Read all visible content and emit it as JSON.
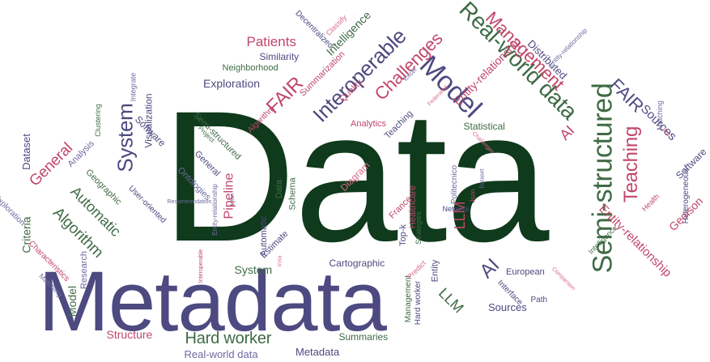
{
  "colors": {
    "dark_green": "#0f3a1c",
    "green": "#3f6b45",
    "navy": "#4c4a80",
    "purple": "#6e6aa0",
    "crimson": "#c1466a",
    "pink": "#d9698c",
    "background": "#ffffff"
  },
  "words": [
    {
      "text": "Data",
      "color": "dark_green",
      "weight": 1,
      "angle": 0
    },
    {
      "text": "Metadata",
      "color": "navy",
      "weight": 0.55,
      "angle": 0
    },
    {
      "text": "Semi-structured",
      "color": "green",
      "weight": 0.3,
      "angle": -90
    },
    {
      "text": "Real-world data",
      "color": "green",
      "weight": 0.2,
      "angle": 45
    },
    {
      "text": "Model",
      "color": "navy",
      "weight": 0.24,
      "angle": 45
    },
    {
      "text": "Interoperable",
      "color": "navy",
      "weight": 0.2,
      "angle": -45
    },
    {
      "text": "Management",
      "color": "crimson",
      "weight": 0.16,
      "angle": 45
    },
    {
      "text": "Challenges",
      "color": "crimson",
      "weight": 0.15,
      "angle": -45
    },
    {
      "text": "Teaching",
      "color": "crimson",
      "weight": 0.16,
      "angle": -90
    },
    {
      "text": "System",
      "color": "navy",
      "weight": 0.16,
      "angle": -90
    },
    {
      "text": "General",
      "color": "crimson",
      "weight": 0.13,
      "angle": -45
    },
    {
      "text": "Algorithm",
      "color": "green",
      "weight": 0.12,
      "angle": 45
    },
    {
      "text": "Automatic",
      "color": "green",
      "weight": 0.12,
      "angle": 45
    },
    {
      "text": "Hard worker",
      "color": "green",
      "weight": 0.11,
      "angle": 0
    },
    {
      "text": "FAIR",
      "color": "crimson",
      "weight": 0.12,
      "angle": -45
    },
    {
      "text": "FAIR",
      "color": "navy",
      "weight": 0.1,
      "angle": 45
    },
    {
      "text": "AI",
      "color": "crimson",
      "weight": 0.1,
      "angle": -45
    },
    {
      "text": "AI",
      "color": "navy",
      "weight": 0.12,
      "angle": -45
    },
    {
      "text": "LLM",
      "color": "crimson",
      "weight": 0.1,
      "angle": -90
    },
    {
      "text": "LLM",
      "color": "green",
      "weight": 0.1,
      "angle": 45
    },
    {
      "text": "Patients",
      "color": "crimson",
      "weight": 0.08,
      "angle": 0
    },
    {
      "text": "Exploration",
      "color": "navy",
      "weight": 0.07,
      "angle": 0
    },
    {
      "text": "Intelligence",
      "color": "green",
      "weight": 0.07,
      "angle": -45
    },
    {
      "text": "Entity-relationship",
      "color": "crimson",
      "weight": 0.08,
      "angle": -45
    },
    {
      "text": "Entity-relationship",
      "color": "crimson",
      "weight": 0.07,
      "angle": 45
    },
    {
      "text": "Sources",
      "color": "navy",
      "weight": 0.07,
      "angle": 45
    },
    {
      "text": "Sources",
      "color": "navy",
      "weight": 0.06,
      "angle": 0
    },
    {
      "text": "Distributed",
      "color": "navy",
      "weight": 0.06,
      "angle": 45
    },
    {
      "text": "Software",
      "color": "navy",
      "weight": 0.06,
      "angle": 45
    },
    {
      "text": "Software",
      "color": "navy",
      "weight": 0.05,
      "angle": -45
    },
    {
      "text": "Geoison",
      "color": "crimson",
      "weight": 0.06,
      "angle": -45
    },
    {
      "text": "Criteria",
      "color": "green",
      "weight": 0.07,
      "angle": -90
    },
    {
      "text": "Dataset",
      "color": "navy",
      "weight": 0.05,
      "angle": -90
    },
    {
      "text": "Structure",
      "color": "crimson",
      "weight": 0.06,
      "angle": 0
    },
    {
      "text": "Real-world data",
      "color": "purple",
      "weight": 0.06,
      "angle": 0
    },
    {
      "text": "Metadata",
      "color": "navy",
      "weight": 0.06,
      "angle": 0
    },
    {
      "text": "Summaries",
      "color": "green",
      "weight": 0.05,
      "angle": 0
    },
    {
      "text": "Cartographic",
      "color": "navy",
      "weight": 0.05,
      "angle": 0
    },
    {
      "text": "System",
      "color": "green",
      "weight": 0.06,
      "angle": 0
    },
    {
      "text": "Model",
      "color": "green",
      "weight": 0.06,
      "angle": -90
    },
    {
      "text": "Visualization",
      "color": "navy",
      "weight": 0.05,
      "angle": -90
    },
    {
      "text": "Similarity",
      "color": "navy",
      "weight": 0.05,
      "angle": 0
    },
    {
      "text": "Neighborhood",
      "color": "green",
      "weight": 0.04,
      "angle": 0
    },
    {
      "text": "Summarization",
      "color": "crimson",
      "weight": 0.04,
      "angle": -45
    },
    {
      "text": "Quality",
      "color": "crimson",
      "weight": 0.04,
      "angle": -45
    },
    {
      "text": "Analytics",
      "color": "crimson",
      "weight": 0.04,
      "angle": 0
    },
    {
      "text": "Statistical",
      "color": "green",
      "weight": 0.04,
      "angle": 0
    },
    {
      "text": "Teaching",
      "color": "navy",
      "weight": 0.04,
      "angle": -45
    },
    {
      "text": "Algorithm",
      "color": "crimson",
      "weight": 0.04,
      "angle": -45
    },
    {
      "text": "Semi-structured",
      "color": "green",
      "weight": 0.04,
      "angle": 45
    },
    {
      "text": "General",
      "color": "navy",
      "weight": 0.04,
      "angle": 45
    },
    {
      "text": "Project",
      "color": "green",
      "weight": 0.04,
      "angle": 45
    },
    {
      "text": "Ontologies",
      "color": "purple",
      "weight": 0.03,
      "angle": 45
    },
    {
      "text": "Pipeline",
      "color": "crimson",
      "weight": 0.05,
      "angle": -90
    },
    {
      "text": "Data",
      "color": "green",
      "weight": 0.07,
      "angle": -90
    },
    {
      "text": "Schema",
      "color": "green",
      "weight": 0.035,
      "angle": -90
    },
    {
      "text": "Automatic",
      "color": "navy",
      "weight": 0.035,
      "angle": -90
    },
    {
      "text": "Estimate",
      "color": "navy",
      "weight": 0.04,
      "angle": -45
    },
    {
      "text": "France",
      "color": "crimson",
      "weight": 0.04,
      "angle": -45
    },
    {
      "text": "Healthcare",
      "color": "crimson",
      "weight": 0.04,
      "angle": -90
    },
    {
      "text": "Top-k",
      "color": "navy",
      "weight": 0.045,
      "angle": -90
    },
    {
      "text": "Strategies",
      "color": "green",
      "weight": 0.04,
      "angle": -90
    },
    {
      "text": "Management",
      "color": "green",
      "weight": 0.03,
      "angle": -90
    },
    {
      "text": "Hard worker",
      "color": "navy",
      "weight": 0.04,
      "angle": -90
    },
    {
      "text": "Entity",
      "color": "navy",
      "weight": 0.035,
      "angle": -90
    },
    {
      "text": "Interface",
      "color": "navy",
      "weight": 0.04,
      "angle": 45
    },
    {
      "text": "European",
      "color": "navy",
      "weight": 0.035,
      "angle": 0
    },
    {
      "text": "Path",
      "color": "navy",
      "weight": 0.04,
      "angle": 0
    },
    {
      "text": "Intelligence",
      "color": "green",
      "weight": 0.03,
      "angle": -45
    },
    {
      "text": "Heterogeneous",
      "color": "navy",
      "weight": 0.03,
      "angle": -90
    },
    {
      "text": "Health",
      "color": "crimson",
      "weight": 0.035,
      "angle": -45
    },
    {
      "text": "Matching",
      "color": "purple",
      "weight": 0.03,
      "angle": -90
    },
    {
      "text": "Decentralized",
      "color": "navy",
      "weight": 0.03,
      "angle": 45
    },
    {
      "text": "Classify",
      "color": "pink",
      "weight": 0.03,
      "angle": -45
    },
    {
      "text": "Analysis",
      "color": "purple",
      "weight": 0.03,
      "angle": -45
    },
    {
      "text": "Geographic",
      "color": "green",
      "weight": 0.035,
      "angle": 45
    },
    {
      "text": "User-oriented",
      "color": "navy",
      "weight": 0.04,
      "angle": 45
    },
    {
      "text": "Research",
      "color": "purple",
      "weight": 0.03,
      "angle": -90
    },
    {
      "text": "Characteristics",
      "color": "crimson",
      "weight": 0.035,
      "angle": 45
    },
    {
      "text": "Matching",
      "color": "purple",
      "weight": 0.03,
      "angle": 45
    },
    {
      "text": "Exploration",
      "color": "purple",
      "weight": 0.025,
      "angle": 45
    },
    {
      "text": "Clustering",
      "color": "green",
      "weight": 0.03,
      "angle": -90
    },
    {
      "text": "Integrate",
      "color": "purple",
      "weight": 0.025,
      "angle": -90
    },
    {
      "text": "Interoperable",
      "color": "crimson",
      "weight": 0.025,
      "angle": -90
    },
    {
      "text": "Recommendation",
      "color": "purple",
      "weight": 0.02,
      "angle": 0
    },
    {
      "text": "Entity-relationship",
      "color": "purple",
      "weight": 0.02,
      "angle": -90
    },
    {
      "text": "Lyon",
      "color": "navy",
      "weight": 0.025,
      "angle": -90
    },
    {
      "text": "Inria",
      "color": "pink",
      "weight": 0.02,
      "angle": -90
    },
    {
      "text": "Predict",
      "color": "pink",
      "weight": 0.02,
      "angle": -45
    },
    {
      "text": "Network",
      "color": "navy",
      "weight": 0.03,
      "angle": 0
    },
    {
      "text": "Politecnico",
      "color": "purple",
      "weight": 0.025,
      "angle": -90
    },
    {
      "text": "Json",
      "color": "crimson",
      "weight": 0.035,
      "angle": -90
    },
    {
      "text": "Dataset",
      "color": "purple",
      "weight": 0.02,
      "angle": -90
    },
    {
      "text": "Challenges",
      "color": "pink",
      "weight": 0.025,
      "angle": 45
    },
    {
      "text": "Excel",
      "color": "purple",
      "weight": 0.02,
      "angle": -45
    },
    {
      "text": "Federated",
      "color": "pink",
      "weight": 0.018,
      "angle": -45
    },
    {
      "text": "Entity-relationship",
      "color": "purple",
      "weight": 0.02,
      "angle": -45
    },
    {
      "text": "Phd",
      "color": "crimson",
      "weight": 0.02,
      "angle": 45
    },
    {
      "text": "Comparison",
      "color": "pink",
      "weight": 0.015,
      "angle": 45
    },
    {
      "text": "Diagram",
      "color": "pink",
      "weight": 0.02,
      "angle": -45
    }
  ]
}
